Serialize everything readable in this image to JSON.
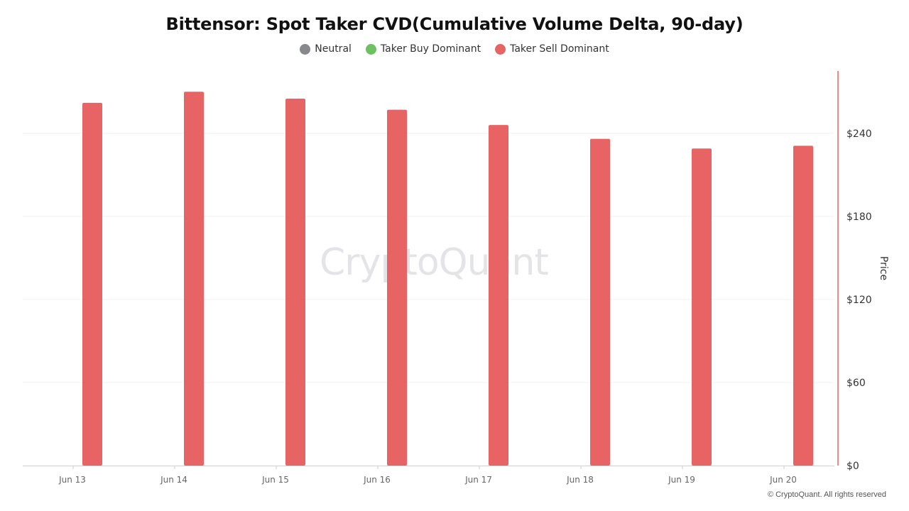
{
  "chart_data": {
    "type": "bar",
    "title": "Bittensor: Spot Taker CVD(Cumulative Volume Delta, 90-day)",
    "legend": {
      "placement": "top-center",
      "entries": [
        {
          "name": "Neutral",
          "color": "#87878e"
        },
        {
          "name": "Taker Buy Dominant",
          "color": "#6cc160"
        },
        {
          "name": "Taker Sell Dominant",
          "color": "#e86464"
        }
      ]
    },
    "categories": [
      "Jun 13",
      "Jun 14",
      "Jun 15",
      "Jun 16",
      "Jun 17",
      "Jun 18",
      "Jun 19",
      "Jun 20"
    ],
    "series": [
      {
        "name": "Taker Sell Dominant",
        "color": "#e86464",
        "values": [
          262,
          270,
          265,
          257,
          246,
          236,
          229,
          231
        ]
      }
    ],
    "y_axis": {
      "label": "Price",
      "position": "right",
      "range": [
        0,
        285
      ],
      "ticks": [
        0,
        60,
        120,
        180,
        240
      ],
      "tick_labels": [
        "$0",
        "$60",
        "$120",
        "$180",
        "$240"
      ]
    },
    "grid": true
  },
  "watermark": "CryptoQuant",
  "copyright": "© CryptoQuant. All rights reserved"
}
